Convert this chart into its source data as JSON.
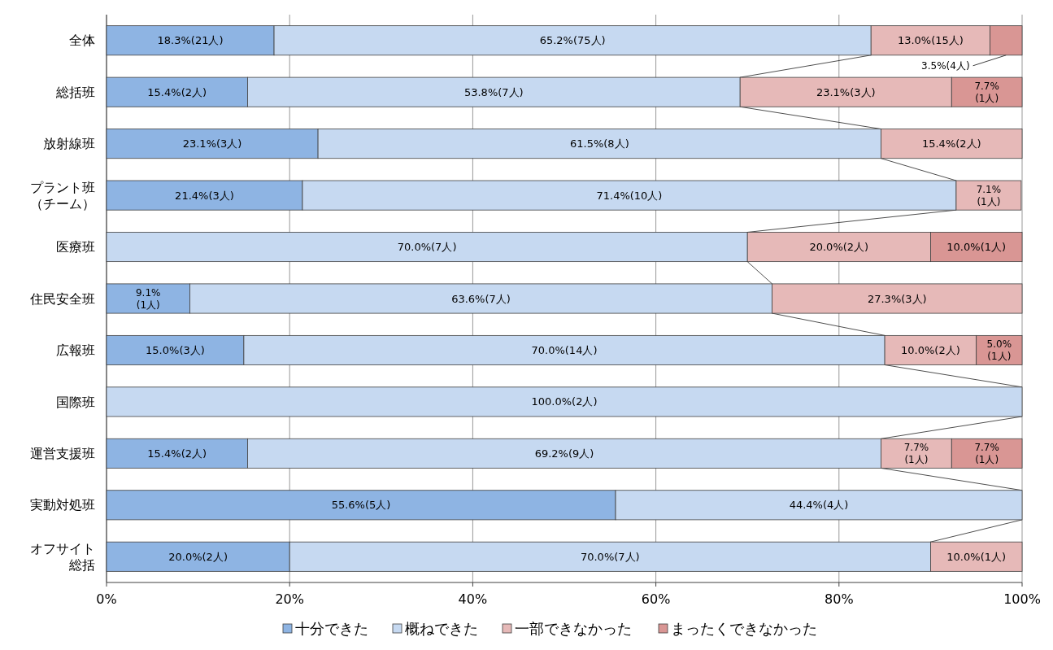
{
  "chart_data": {
    "type": "bar",
    "orientation": "horizontal",
    "stacked": true,
    "categories": [
      "全体",
      "総括班",
      "放射線班",
      "プラント班（チーム）",
      "医療班",
      "住民安全班",
      "広報班",
      "国際班",
      "運営支援班",
      "実動対処班",
      "オフサイト総括"
    ],
    "series": [
      {
        "name": "十分できた",
        "color": "#8eb4e3",
        "values": [
          18.3,
          15.4,
          23.1,
          21.4,
          null,
          9.1,
          15.0,
          null,
          15.4,
          55.6,
          20.0
        ],
        "value_labels": [
          "18.3%(21人)",
          "15.4%(2人)",
          "23.1%(3人)",
          "21.4%(3人)",
          null,
          "9.1%(1人)",
          "15.0%(3人)",
          null,
          "15.4%(2人)",
          "55.6%(5人)",
          "20.0%(2人)"
        ]
      },
      {
        "name": "概ねできた",
        "color": "#c6d9f1",
        "values": [
          65.2,
          53.8,
          61.5,
          71.4,
          70.0,
          63.6,
          70.0,
          100.0,
          69.2,
          44.4,
          70.0
        ],
        "value_labels": [
          "65.2%(75人)",
          "53.8%(7人)",
          "61.5%(8人)",
          "71.4%(10人)",
          "70.0%(7人)",
          "63.6%(7人)",
          "70.0%(14人)",
          "100.0%(2人)",
          "69.2%(9人)",
          "44.4%(4人)",
          "70.0%(7人)"
        ]
      },
      {
        "name": "一部できなかった",
        "color": "#e6b9b8",
        "values": [
          13.0,
          23.1,
          15.4,
          7.1,
          20.0,
          27.3,
          10.0,
          null,
          7.7,
          null,
          10.0
        ],
        "value_labels": [
          "13.0%(15人)",
          "23.1%(3人)",
          "15.4%(2人)",
          "7.1%(1人)",
          "20.0%(2人)",
          "27.3%(3人)",
          "10.0%(2人)",
          null,
          "7.7%(1人)",
          null,
          "10.0%(1人)"
        ]
      },
      {
        "name": "まったくできなかった",
        "color": "#d99694",
        "values": [
          3.5,
          7.7,
          null,
          null,
          10.0,
          null,
          5.0,
          null,
          7.7,
          null,
          null
        ],
        "value_labels": [
          "3.5%(4人)",
          "7.7%(1人)",
          null,
          null,
          "10.0%(1人)",
          null,
          "5.0%(1人)",
          null,
          "7.7%(1人)",
          null,
          null
        ]
      }
    ],
    "xlim": [
      0,
      100
    ],
    "xticks": [
      {
        "value": 0,
        "label": "0%"
      },
      {
        "value": 20,
        "label": "20%"
      },
      {
        "value": 40,
        "label": "40%"
      },
      {
        "value": 60,
        "label": "60%"
      },
      {
        "value": 80,
        "label": "80%"
      },
      {
        "value": 100,
        "label": "100%"
      }
    ],
    "grid": "x",
    "legend": "bottom"
  }
}
